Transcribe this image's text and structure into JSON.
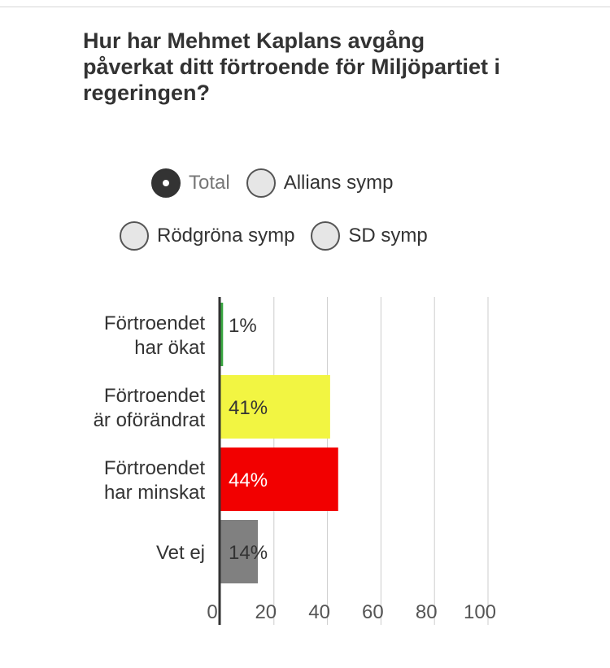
{
  "title": "Hur har Mehmet Kaplans avgång påverkat ditt förtroende för Miljöpartiet i regeringen?",
  "filters": {
    "options": [
      "Total",
      "Allians symp",
      "Rödgröna symp",
      "SD symp"
    ],
    "selected": "Total"
  },
  "chart_data": {
    "type": "bar",
    "orientation": "horizontal",
    "categories": [
      [
        "Förtroendet",
        "har ökat"
      ],
      [
        "Förtroendet",
        "är oförändrat"
      ],
      [
        "Förtroendet",
        "har minskat"
      ],
      [
        "Vet ej"
      ]
    ],
    "values": [
      1,
      41,
      44,
      14
    ],
    "value_labels": [
      "1%",
      "41%",
      "44%",
      "14%"
    ],
    "colors": [
      "#3aa842",
      "#f2f542",
      "#f20000",
      "#808080"
    ],
    "label_colors": [
      "#333333",
      "#333333",
      "#ffffff",
      "#333333"
    ],
    "xlim": [
      0,
      100
    ],
    "xticks": [
      0,
      20,
      40,
      60,
      80,
      100
    ],
    "grid": true
  }
}
